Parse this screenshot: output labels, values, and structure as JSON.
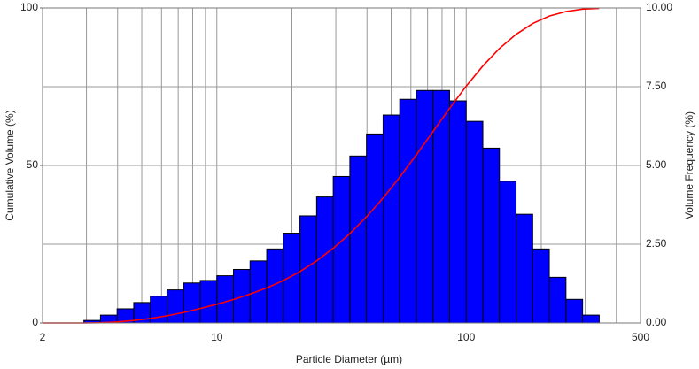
{
  "chart_data": {
    "type": "histogram",
    "xlabel": "Particle Diameter (µm)",
    "ylabel": "Cumulative Volume (%)",
    "y2label": "Volume Frequency (%)",
    "xscale": "log",
    "xlim": [
      2,
      500
    ],
    "xticks": [
      2,
      10,
      100,
      500
    ],
    "xgrid": [
      3,
      4,
      5,
      6,
      7,
      8,
      9,
      20,
      30,
      40,
      50,
      60,
      70,
      80,
      90,
      200,
      300,
      400
    ],
    "ylim": [
      0,
      100
    ],
    "yticks": [
      0,
      50,
      100
    ],
    "y2lim": [
      0,
      10
    ],
    "y2ticks": [
      {
        "value": 0,
        "label": "0.00"
      },
      {
        "value": 2.5,
        "label": "2.50"
      },
      {
        "value": 5,
        "label": "5.00"
      },
      {
        "value": 7.5,
        "label": "7.50"
      },
      {
        "value": 10,
        "label": "10.00"
      }
    ],
    "grid": true,
    "bins": [
      2.929,
      3.415,
      3.981,
      4.642,
      5.412,
      6.31,
      7.356,
      8.577,
      10,
      11.66,
      13.59,
      15.85,
      18.48,
      21.54,
      25.12,
      29.29,
      34.15,
      39.81,
      46.42,
      54.12,
      63.1,
      73.56,
      85.77,
      100,
      116.6,
      135.9,
      158.5,
      184.8,
      215.4,
      251.2,
      292.9,
      341.5
    ],
    "counts": [
      0.08,
      0.25,
      0.45,
      0.65,
      0.85,
      1.05,
      1.27,
      1.35,
      1.5,
      1.7,
      1.97,
      2.35,
      2.85,
      3.4,
      4.0,
      4.65,
      5.3,
      6.0,
      6.6,
      7.1,
      7.38,
      7.38,
      7.05,
      6.4,
      5.55,
      4.5,
      3.45,
      2.35,
      1.45,
      0.75,
      0.25
    ],
    "bar_color": "#0000ff",
    "bar_axis": "y2",
    "cumulative": {
      "color": "#ff0000",
      "x": [
        2,
        2.929,
        3.415,
        3.981,
        4.642,
        5.412,
        6.31,
        7.356,
        8.577,
        10,
        11.66,
        13.59,
        15.85,
        18.48,
        21.54,
        25.12,
        29.29,
        34.15,
        39.81,
        46.42,
        54.12,
        63.1,
        73.56,
        85.77,
        100,
        116.6,
        135.9,
        158.5,
        184.8,
        215.4,
        251.2,
        292.9,
        341.5
      ],
      "values": [
        0,
        0,
        0.08,
        0.33,
        0.78,
        1.43,
        2.28,
        3.33,
        4.6,
        5.95,
        7.45,
        9.15,
        11.12,
        13.47,
        16.32,
        19.72,
        23.72,
        28.37,
        33.67,
        39.67,
        46.27,
        53.37,
        60.75,
        68.13,
        75.18,
        81.58,
        87.13,
        91.63,
        95.08,
        97.43,
        98.88,
        99.63,
        99.88
      ]
    }
  }
}
